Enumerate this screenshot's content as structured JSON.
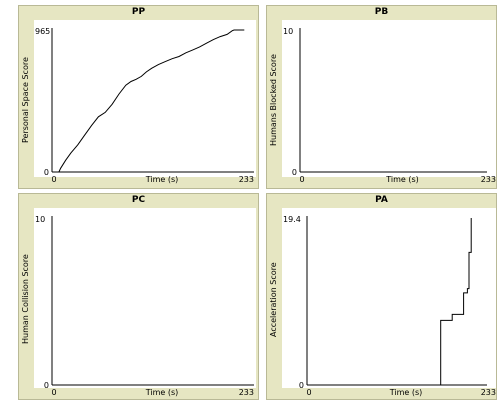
{
  "chart_data": [
    {
      "type": "line",
      "title": "PP",
      "xlabel": "Time (s)",
      "ylabel": "Personal Space Score",
      "xlim": [
        0,
        233
      ],
      "ylim": [
        0,
        965
      ],
      "x_tick_labels": [
        "0",
        "233"
      ],
      "y_tick_labels": [
        "0",
        "965"
      ],
      "series": [
        {
          "color": "#000000",
          "x": [
            0,
            8,
            10,
            16,
            22,
            30,
            38,
            46,
            54,
            62,
            70,
            78,
            86,
            92,
            98,
            104,
            110,
            116,
            124,
            132,
            140,
            148,
            156,
            164,
            172,
            180,
            188,
            196,
            204,
            210,
            212,
            224
          ],
          "y": [
            0,
            0,
            25,
            80,
            130,
            185,
            250,
            315,
            375,
            405,
            460,
            530,
            590,
            615,
            630,
            650,
            680,
            705,
            730,
            750,
            770,
            785,
            810,
            830,
            850,
            875,
            900,
            920,
            935,
            960,
            965,
            965
          ]
        }
      ]
    },
    {
      "type": "line",
      "title": "PB",
      "xlabel": "Time (s)",
      "ylabel": "Humans Blocked Score",
      "xlim": [
        0,
        233
      ],
      "ylim": [
        0,
        10
      ],
      "x_tick_labels": [
        "0",
        "233"
      ],
      "y_tick_labels": [
        "0",
        "10"
      ],
      "series": [
        {
          "color": "#000000",
          "x": [
            0,
            224
          ],
          "y": [
            0,
            0
          ]
        }
      ]
    },
    {
      "type": "line",
      "title": "PC",
      "xlabel": "Time (s)",
      "ylabel": "Human Collision Score",
      "xlim": [
        0,
        233
      ],
      "ylim": [
        0,
        10
      ],
      "x_tick_labels": [
        "0",
        "233"
      ],
      "y_tick_labels": [
        "0",
        "10"
      ],
      "series": [
        {
          "color": "#000000",
          "x": [
            0,
            224
          ],
          "y": [
            0,
            0
          ]
        }
      ]
    },
    {
      "type": "line",
      "title": "PA",
      "xlabel": "Time (s)",
      "ylabel": "Acceleration Score",
      "xlim": [
        0,
        233
      ],
      "ylim": [
        0,
        19.4
      ],
      "x_tick_labels": [
        "0",
        "233"
      ],
      "y_tick_labels": [
        "0",
        "19.4"
      ],
      "series": [
        {
          "color": "#000000",
          "x": [
            0,
            175,
            175,
            190,
            190,
            205,
            205,
            210,
            210,
            212,
            212,
            215,
            215
          ],
          "y": [
            0,
            0,
            7.5,
            7.5,
            8.2,
            8.2,
            10.7,
            10.7,
            11.2,
            11.2,
            15.4,
            15.4,
            19.4
          ]
        }
      ]
    }
  ]
}
